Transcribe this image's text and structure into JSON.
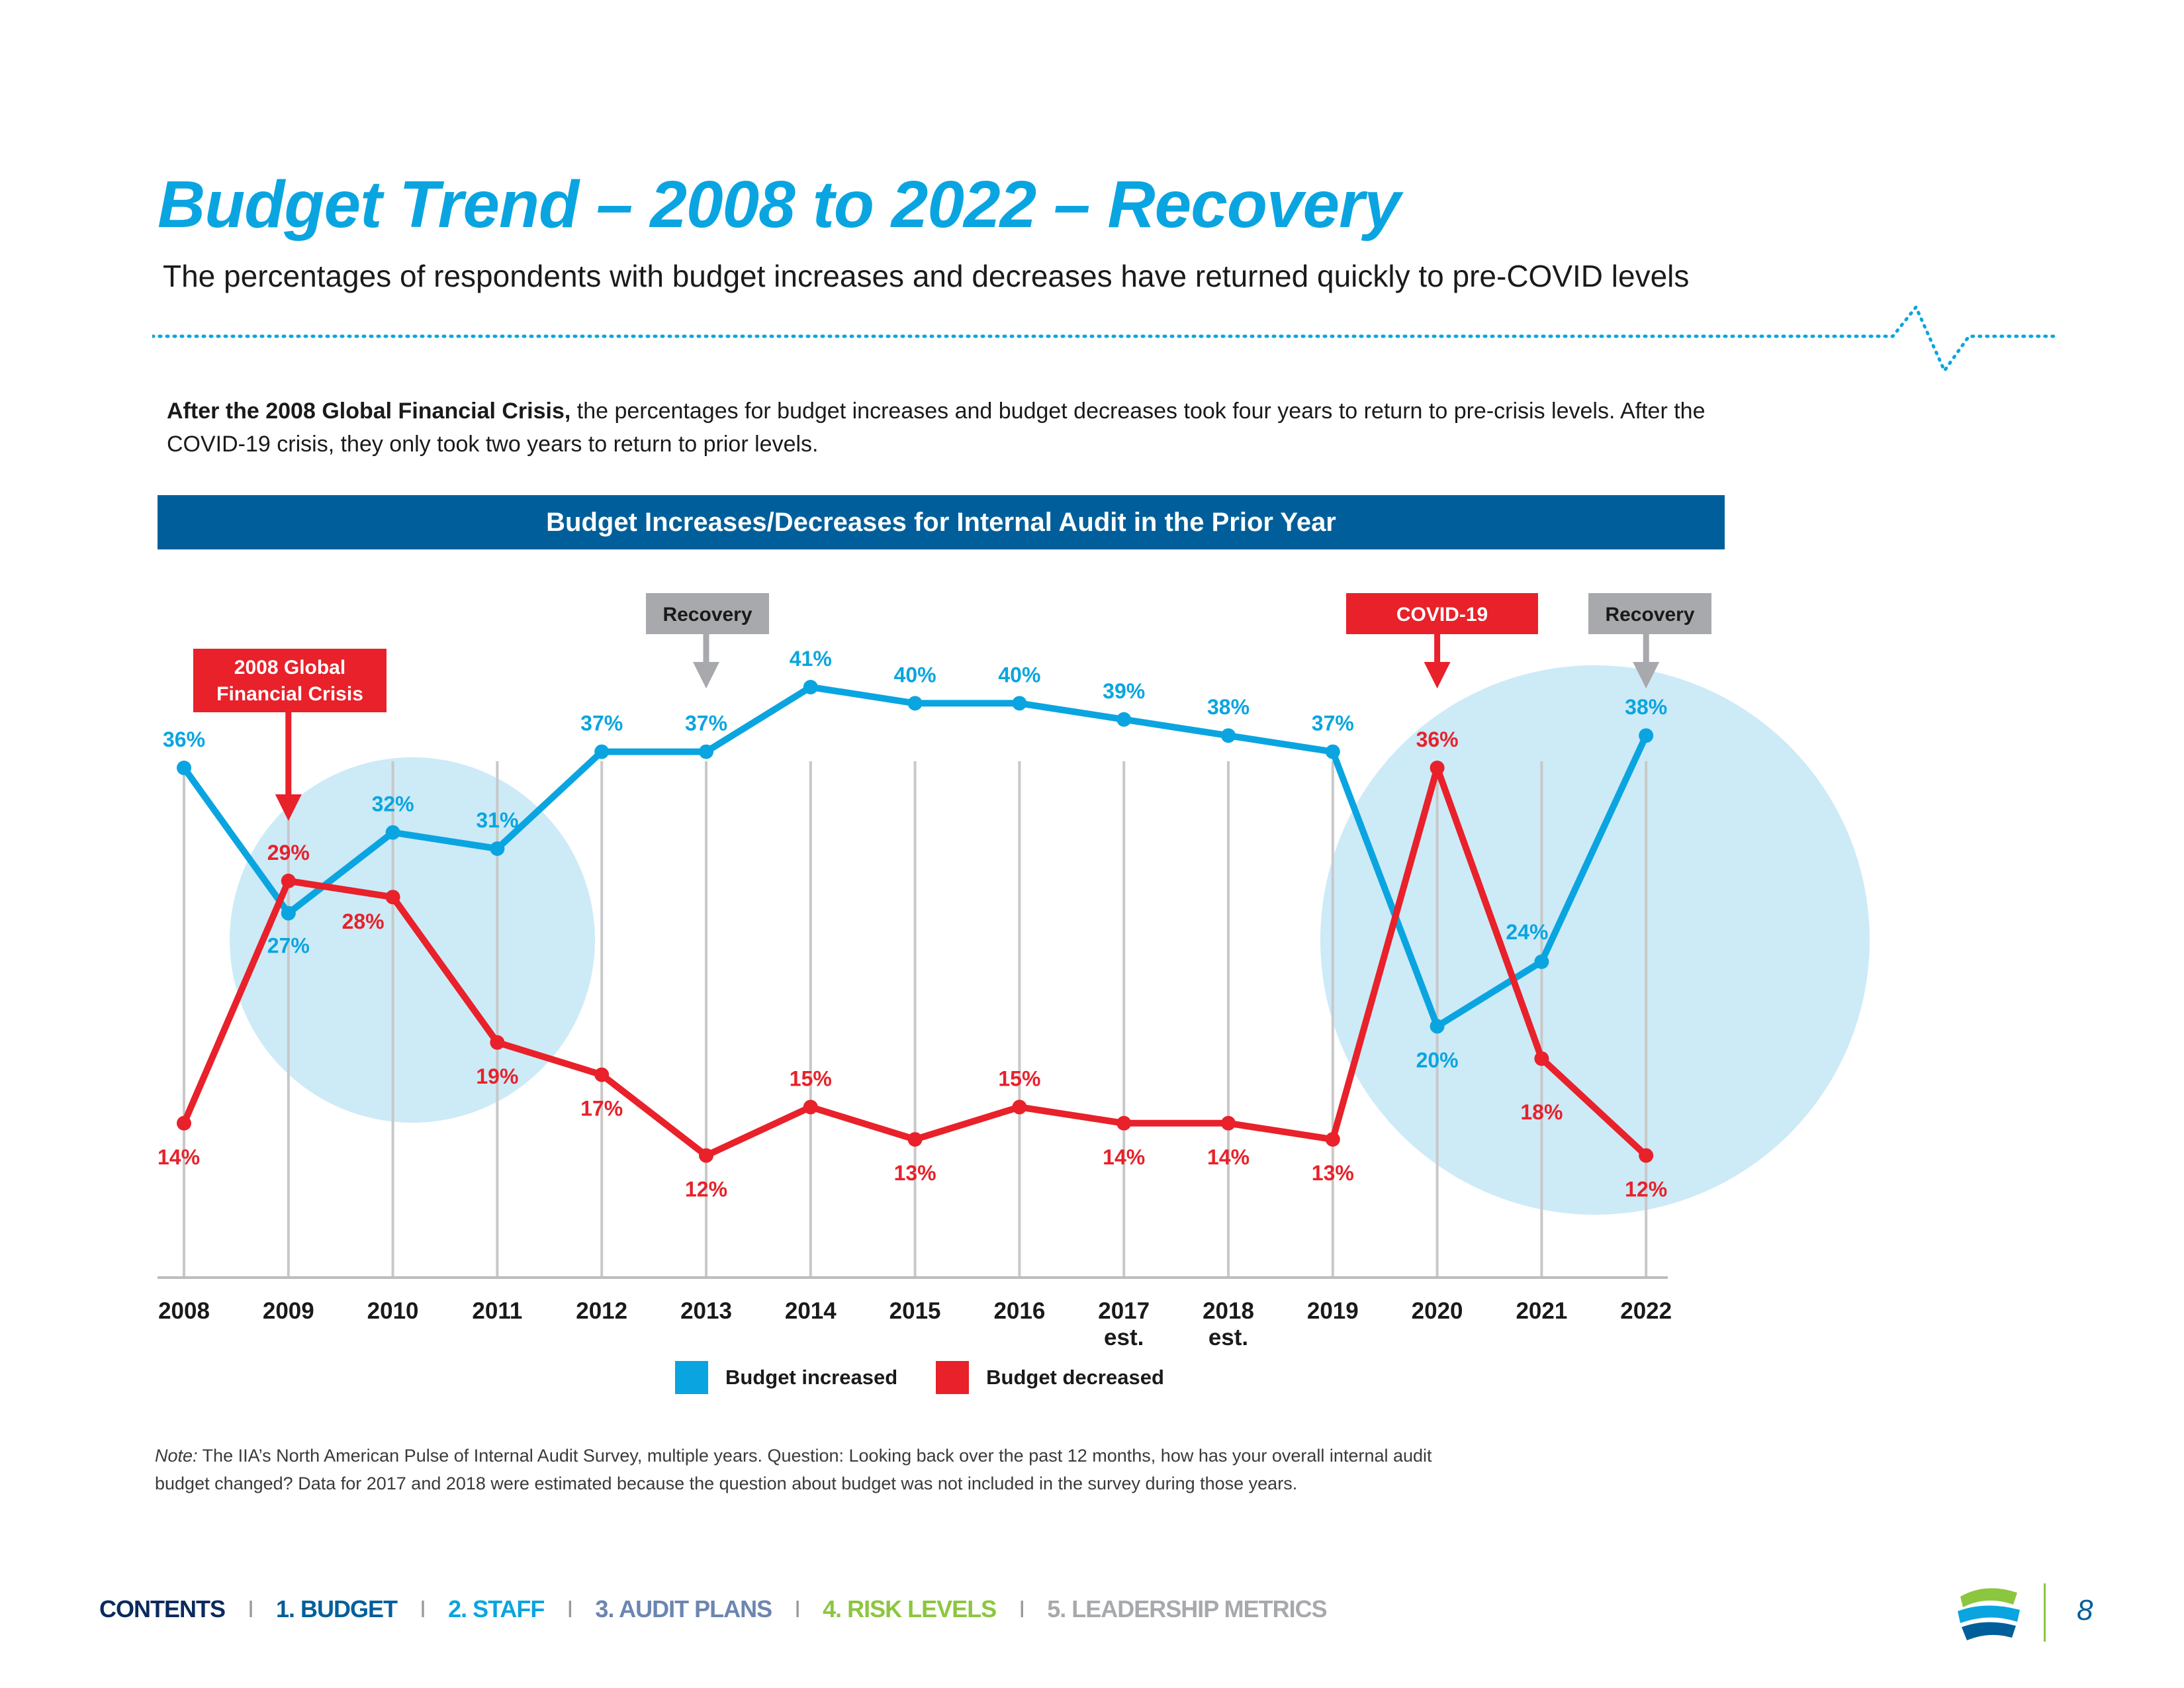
{
  "header": {
    "title": "Budget Trend – 2008 to 2022 – Recovery",
    "subtitle": "The percentages of respondents with budget increases and decreases have returned quickly to pre-COVID levels"
  },
  "intro": {
    "bold": "After the 2008 Global Financial Crisis,",
    "text": " the percentages for budget increases and budget decreases took four years to return to pre-crisis levels. After the COVID-19 crisis, they only took two years to return to prior levels."
  },
  "chart_data": {
    "type": "line",
    "title": "Budget Increases/Decreases for Internal Audit in the Prior Year",
    "categories": [
      "2008",
      "2009",
      "2010",
      "2011",
      "2012",
      "2013",
      "2014",
      "2015",
      "2016",
      "2017 est.",
      "2018 est.",
      "2019",
      "2020",
      "2021",
      "2022"
    ],
    "category_lines": [
      [
        "2008"
      ],
      [
        "2009"
      ],
      [
        "2010"
      ],
      [
        "2011"
      ],
      [
        "2012"
      ],
      [
        "2013"
      ],
      [
        "2014"
      ],
      [
        "2015"
      ],
      [
        "2016"
      ],
      [
        "2017",
        "est."
      ],
      [
        "2018",
        "est."
      ],
      [
        "2019"
      ],
      [
        "2020"
      ],
      [
        "2021"
      ],
      [
        "2022"
      ]
    ],
    "series": [
      {
        "name": "Budget increased",
        "color": "#0aa5e0",
        "values": [
          36,
          27,
          32,
          31,
          37,
          37,
          41,
          40,
          40,
          39,
          38,
          37,
          20,
          24,
          38
        ]
      },
      {
        "name": "Budget decreased",
        "color": "#e8212a",
        "values": [
          14,
          29,
          28,
          19,
          17,
          12,
          15,
          13,
          15,
          14,
          14,
          13,
          36,
          18,
          12
        ]
      }
    ],
    "value_suffix": "%",
    "grid": "vertical per category",
    "legend": "bottom-center",
    "annotations": [
      {
        "lines": [
          "2008 Global",
          "Financial Crisis"
        ],
        "category": "2009",
        "color": "#e8212a"
      },
      {
        "lines": [
          "Recovery"
        ],
        "category": "2013",
        "color": "#a7a9ac"
      },
      {
        "lines": [
          "COVID-19"
        ],
        "category": "2020",
        "color": "#e8212a"
      },
      {
        "lines": [
          "Recovery"
        ],
        "category": "2022",
        "color": "#a7a9ac"
      }
    ]
  },
  "note": {
    "label": "Note:",
    "text": " The IIA’s North American Pulse of Internal Audit Survey, multiple years. Question: Looking back over the past 12 months, how has your overall internal audit budget changed? Data for 2017 and 2018 were estimated because the question about budget was not included in the survey during those years."
  },
  "footer": {
    "items": [
      {
        "label": "CONTENTS",
        "color": "#0b2a5e"
      },
      {
        "label": "1. BUDGET",
        "color": "#005f9a"
      },
      {
        "label": "2. STAFF",
        "color": "#0aa5e0"
      },
      {
        "label": "3. AUDIT PLANS",
        "color": "#6b86b0"
      },
      {
        "label": "4. RISK LEVELS",
        "color": "#8cc63f"
      },
      {
        "label": "5. LEADERSHIP METRICS",
        "color": "#a7a9ac"
      }
    ],
    "separator": "I",
    "page_number": "8"
  },
  "colors": {
    "accent": "#0aa5e0",
    "banner": "#005f9a",
    "red": "#e8212a",
    "highlight": "#cdeaf7"
  }
}
